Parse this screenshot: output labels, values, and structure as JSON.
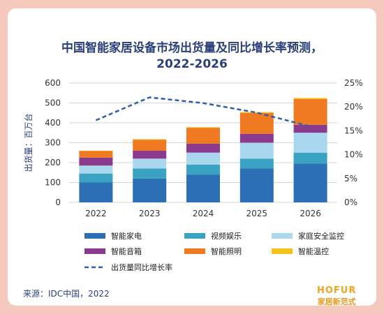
{
  "title_line1": "中国智能家居设备市场出货量及同比增长率预测，",
  "title_line2": "2022-2026",
  "source": "来源：IDC中国，2022",
  "brand": {
    "name": "HOFUR",
    "tagline": "家居新范式"
  },
  "colors": {
    "background": "#f6c9be",
    "smart_appliance": "#2d6fb5",
    "video_ent": "#3aa3c4",
    "home_security": "#a9d8ee",
    "smart_audio": "#8c3a8e",
    "smart_lighting": "#ef7a22",
    "smart_temp": "#f5c21b",
    "growth_line": "#2e5fa8"
  },
  "chart_data": {
    "type": "bar",
    "stacked": true,
    "categories": [
      "2022",
      "2023",
      "2024",
      "2025",
      "2026"
    ],
    "ylabel": "出货量：百万台",
    "ylim": [
      0,
      600
    ],
    "yticks": [
      "0",
      "100",
      "200",
      "300",
      "400",
      "500",
      "600"
    ],
    "y2lim": [
      0,
      25
    ],
    "y2ticks": [
      "0%",
      "5%",
      "10%",
      "15%",
      "20%",
      "25%"
    ],
    "grid": true,
    "legend_position": "bottom",
    "series": [
      {
        "name": "智能家电",
        "color_key": "smart_appliance",
        "values": [
          100,
          120,
          140,
          170,
          195
        ]
      },
      {
        "name": "视频娱乐",
        "color_key": "video_ent",
        "values": [
          45,
          50,
          50,
          50,
          55
        ]
      },
      {
        "name": "家庭安全监控",
        "color_key": "home_security",
        "values": [
          40,
          50,
          60,
          80,
          100
        ]
      },
      {
        "name": "智能音箱",
        "color_key": "smart_audio",
        "values": [
          40,
          40,
          45,
          45,
          40
        ]
      },
      {
        "name": "智能照明",
        "color_key": "smart_lighting",
        "values": [
          33,
          55,
          80,
          105,
          130
        ]
      },
      {
        "name": "智能温控",
        "color_key": "smart_temp",
        "values": [
          2,
          3,
          3,
          4,
          5
        ]
      }
    ],
    "line_series": {
      "name": "出货量同比增长率",
      "axis": "secondary",
      "values": [
        17.2,
        22,
        20.8,
        18.8,
        15.9
      ]
    }
  }
}
